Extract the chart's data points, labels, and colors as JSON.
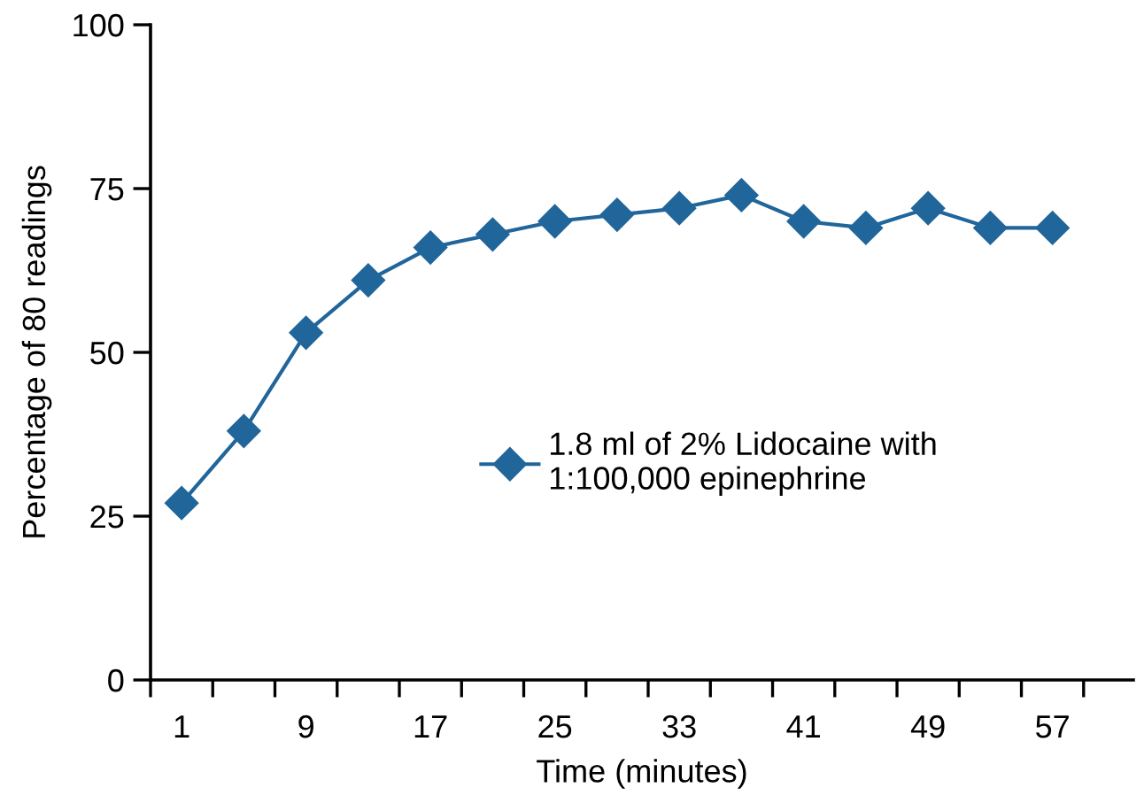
{
  "chart_data": {
    "type": "line",
    "xlabel": "Time (minutes)",
    "ylabel": "Percentage of 80 readings",
    "categories": [
      "1",
      null,
      "9",
      null,
      "17",
      null,
      "25",
      null,
      "33",
      null,
      "41",
      null,
      "49",
      null,
      "57"
    ],
    "series": [
      {
        "name": "1.8 ml of 2% Lidocaine with\n1:100,000 epinephrine",
        "color": "#21669a",
        "values": [
          27,
          38,
          53,
          61,
          66,
          68,
          70,
          71,
          72,
          74,
          70,
          69,
          72,
          69,
          69
        ]
      }
    ],
    "ylim": [
      0,
      100
    ],
    "yticks": [
      0,
      25,
      50,
      75,
      100
    ],
    "grid": false,
    "legend": "center right",
    "marker": "diamond",
    "line_style": "solid"
  }
}
